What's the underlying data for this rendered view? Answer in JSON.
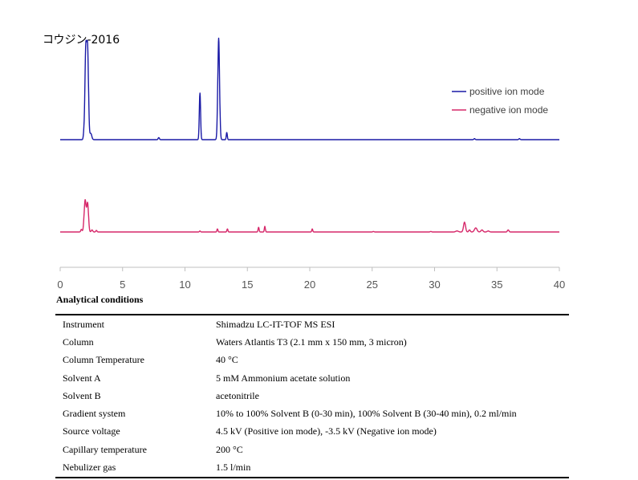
{
  "chart_data": {
    "type": "line",
    "title": "コウジン-2016",
    "xlabel": "",
    "ylabel": "",
    "xlim": [
      0,
      40
    ],
    "x_ticks": [
      "0",
      "5",
      "10",
      "15",
      "20",
      "25",
      "30",
      "35",
      "40"
    ],
    "grid": false,
    "legend_position": "top-right",
    "series": [
      {
        "name": "positive ion mode",
        "color": "#1a1aa6",
        "baseline": 0,
        "peaks": [
          {
            "x": 1.9,
            "h": 0.04,
            "w": 0.05
          },
          {
            "x": 2.05,
            "h": 0.84,
            "w": 0.07
          },
          {
            "x": 2.2,
            "h": 0.84,
            "w": 0.07
          },
          {
            "x": 2.45,
            "h": 0.06,
            "w": 0.08
          },
          {
            "x": 7.9,
            "h": 0.02,
            "w": 0.05
          },
          {
            "x": 11.2,
            "h": 0.45,
            "w": 0.05
          },
          {
            "x": 12.7,
            "h": 0.98,
            "w": 0.07
          },
          {
            "x": 13.35,
            "h": 0.07,
            "w": 0.04
          },
          {
            "x": 33.2,
            "h": 0.01,
            "w": 0.05
          },
          {
            "x": 36.8,
            "h": 0.01,
            "w": 0.05
          }
        ]
      },
      {
        "name": "negative ion mode",
        "color": "#d6286a",
        "baseline": 0,
        "peaks": [
          {
            "x": 1.7,
            "h": 0.05,
            "w": 0.05
          },
          {
            "x": 2.0,
            "h": 0.62,
            "w": 0.08
          },
          {
            "x": 2.2,
            "h": 0.55,
            "w": 0.07
          },
          {
            "x": 2.55,
            "h": 0.04,
            "w": 0.06
          },
          {
            "x": 2.9,
            "h": 0.03,
            "w": 0.05
          },
          {
            "x": 11.2,
            "h": 0.02,
            "w": 0.04
          },
          {
            "x": 12.6,
            "h": 0.06,
            "w": 0.04
          },
          {
            "x": 13.4,
            "h": 0.06,
            "w": 0.04
          },
          {
            "x": 15.9,
            "h": 0.09,
            "w": 0.04
          },
          {
            "x": 16.4,
            "h": 0.11,
            "w": 0.04
          },
          {
            "x": 20.2,
            "h": 0.06,
            "w": 0.04
          },
          {
            "x": 25.1,
            "h": 0.01,
            "w": 0.05
          },
          {
            "x": 29.7,
            "h": 0.01,
            "w": 0.05
          },
          {
            "x": 31.8,
            "h": 0.02,
            "w": 0.1
          },
          {
            "x": 32.4,
            "h": 0.19,
            "w": 0.08
          },
          {
            "x": 32.8,
            "h": 0.04,
            "w": 0.06
          },
          {
            "x": 33.3,
            "h": 0.08,
            "w": 0.1
          },
          {
            "x": 33.8,
            "h": 0.04,
            "w": 0.08
          },
          {
            "x": 34.3,
            "h": 0.02,
            "w": 0.08
          },
          {
            "x": 35.9,
            "h": 0.04,
            "w": 0.06
          }
        ]
      }
    ]
  },
  "conditions": {
    "heading": "Analytical conditions",
    "rows": [
      {
        "label": "Instrument",
        "value": "Shimadzu LC-IT-TOF MS ESI"
      },
      {
        "label": "Column",
        "value": "Waters Atlantis T3 (2.1 mm x 150 mm, 3 micron)"
      },
      {
        "label": "Column Temperature",
        "value": "40 °C"
      },
      {
        "label": "Solvent A",
        "value": "5 mM Ammonium acetate solution"
      },
      {
        "label": "Solvent B",
        "value": "acetonitrile"
      },
      {
        "label": "Gradient system",
        "value": "10% to 100% Solvent B (0-30 min), 100% Solvent B (30-40 min), 0.2 ml/min"
      },
      {
        "label": "Source voltage",
        "value": "4.5 kV (Positive ion mode), -3.5 kV (Negative ion mode)"
      },
      {
        "label": "Capillary temperature",
        "value": "200 °C"
      },
      {
        "label": "Nebulizer gas",
        "value": "1.5 l/min"
      }
    ]
  }
}
